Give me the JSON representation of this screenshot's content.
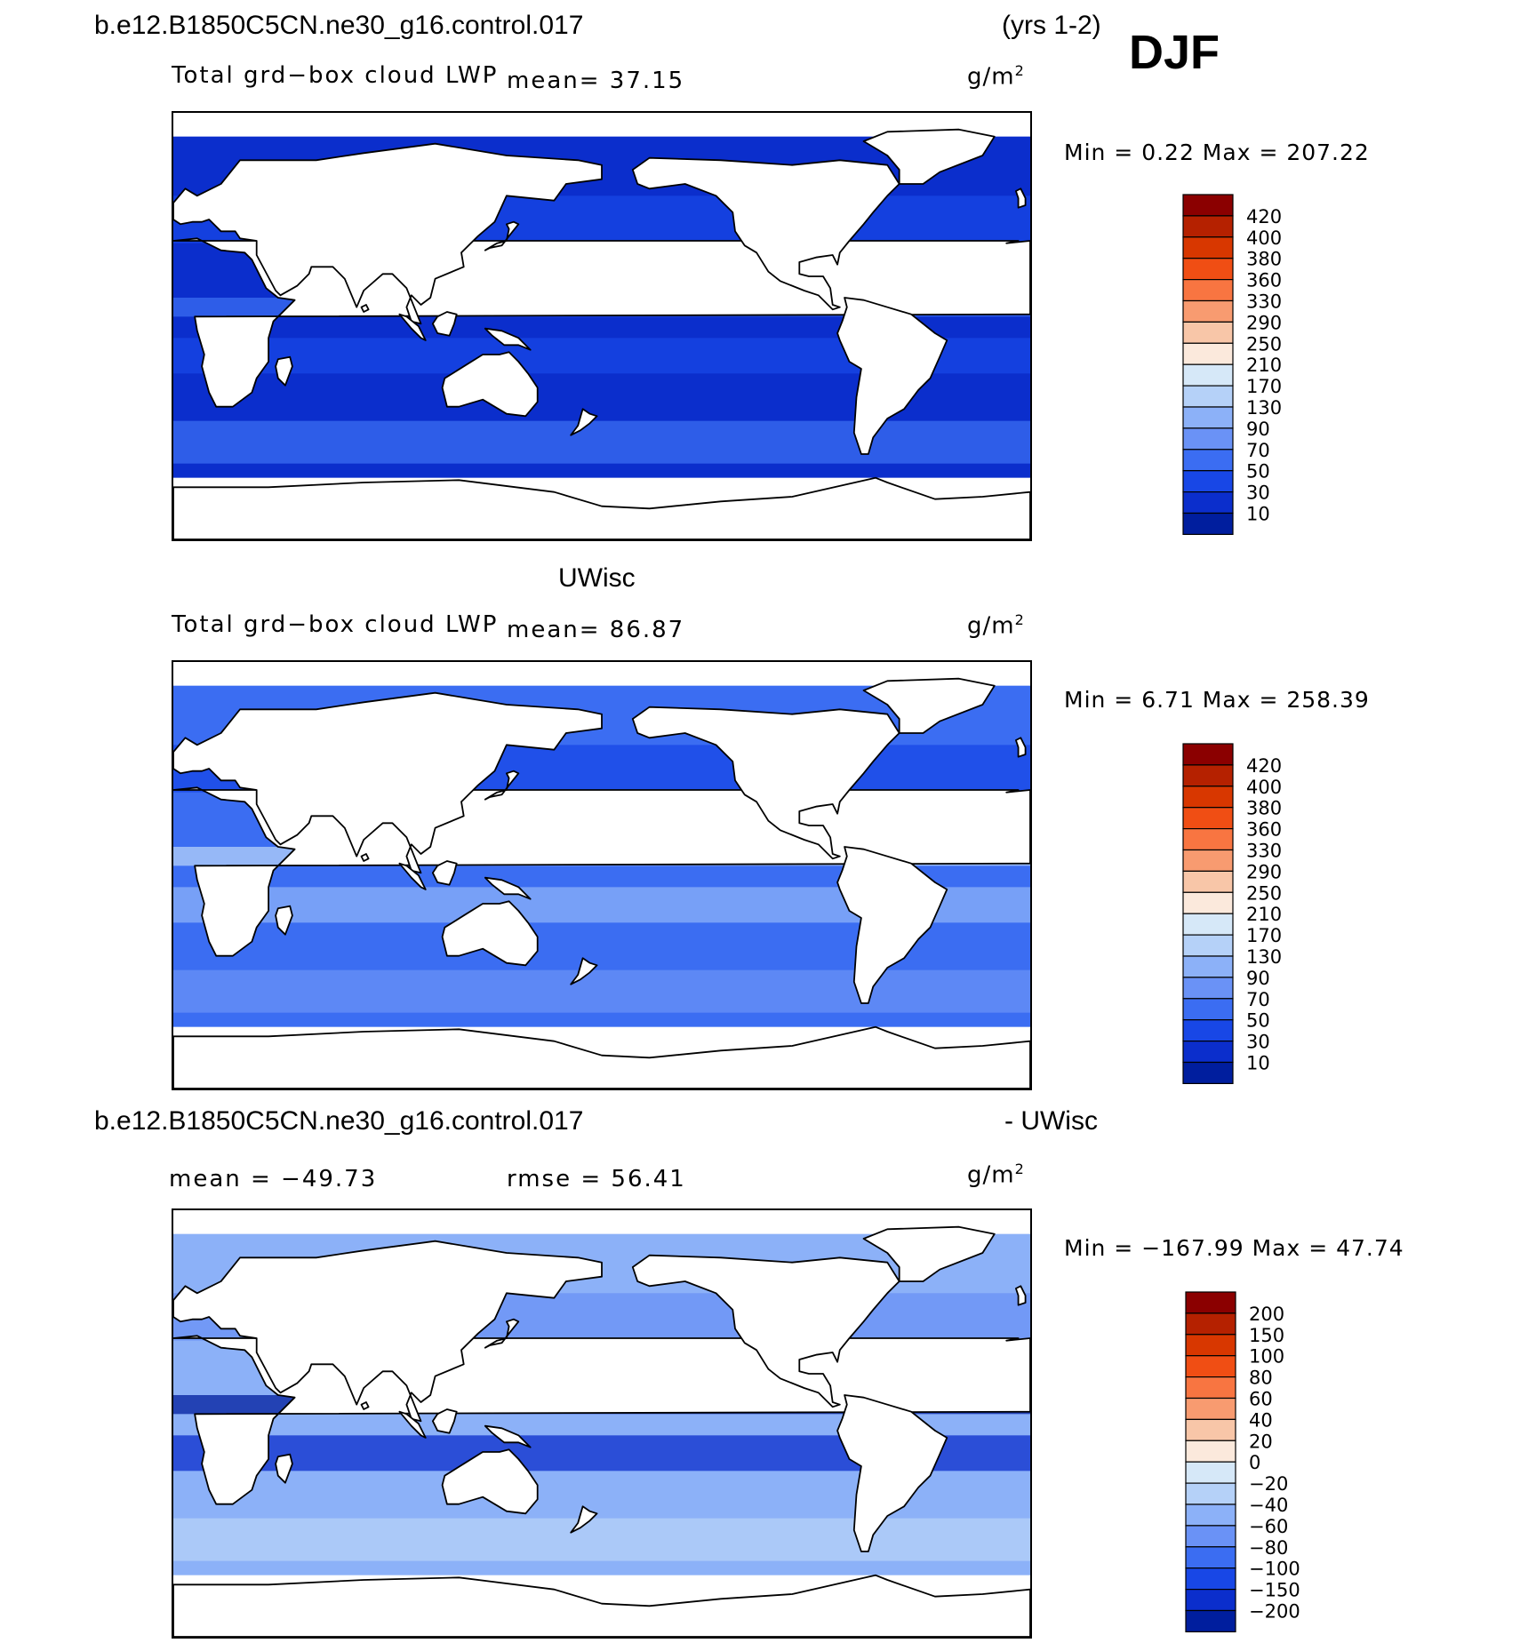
{
  "header": {
    "case_title": "b.e12.B1850C5CN.ne30_g16.control.017",
    "years": "(yrs 1-2)",
    "season": "DJF"
  },
  "panels": [
    {
      "heading": "",
      "left_label": "Total grd−box cloud LWP",
      "center_label": "mean=   37.15",
      "units": "g/m",
      "units_sup": "2",
      "minmax": "Min =    0.22  Max  =  207.22",
      "legend_labels": [
        "420",
        "400",
        "380",
        "360",
        "330",
        "290",
        "250",
        "210",
        "170",
        "130",
        "90",
        "70",
        "50",
        "30",
        "10"
      ],
      "legend_colors": [
        "#8b0000",
        "#b52100",
        "#d83700",
        "#f04e14",
        "#f87541",
        "#f89b70",
        "#f8c6a8",
        "#fbe9dc",
        "#d6e8f8",
        "#b5d1f8",
        "#8cb1f8",
        "#6a92f6",
        "#3b6df2",
        "#1847e6",
        "#0b2ecc",
        "#001e9e"
      ],
      "base_color": "#0b2ecc"
    },
    {
      "heading": "UWisc",
      "left_label": "Total grd−box cloud LWP",
      "center_label": "mean=   86.87",
      "units": "g/m",
      "units_sup": "2",
      "minmax": "Min =    6.71  Max  =  258.39",
      "legend_labels": [
        "420",
        "400",
        "380",
        "360",
        "330",
        "290",
        "250",
        "210",
        "170",
        "130",
        "90",
        "70",
        "50",
        "30",
        "10"
      ],
      "legend_colors": [
        "#8b0000",
        "#b52100",
        "#d83700",
        "#f04e14",
        "#f87541",
        "#f89b70",
        "#f8c6a8",
        "#fbe9dc",
        "#d6e8f8",
        "#b5d1f8",
        "#8cb1f8",
        "#6a92f6",
        "#3b6df2",
        "#1847e6",
        "#0b2ecc",
        "#001e9e"
      ],
      "base_color": "#3b6df2"
    },
    {
      "heading": "b.e12.B1850C5CN.ne30_g16.control.017",
      "heading_right": "- UWisc",
      "left_label": "mean  =  −49.73",
      "center_label": "rmse  =   56.41",
      "units": "g/m",
      "units_sup": "2",
      "minmax": "Min  =  −167.99  Max  =    47.74",
      "legend_labels": [
        "200",
        "150",
        "100",
        "80",
        "60",
        "40",
        "20",
        "0",
        "−20",
        "−40",
        "−60",
        "−80",
        "−100",
        "−150",
        "−200"
      ],
      "legend_colors": [
        "#8b0000",
        "#b52100",
        "#d83700",
        "#f04e14",
        "#f87541",
        "#f89b70",
        "#f8c6a8",
        "#fbe9dc",
        "#d6e8f8",
        "#b5d1f8",
        "#8cb1f8",
        "#6a92f6",
        "#3b6df2",
        "#1847e6",
        "#0b2ecc",
        "#001e9e"
      ],
      "base_color": "#8cb1f8"
    }
  ]
}
